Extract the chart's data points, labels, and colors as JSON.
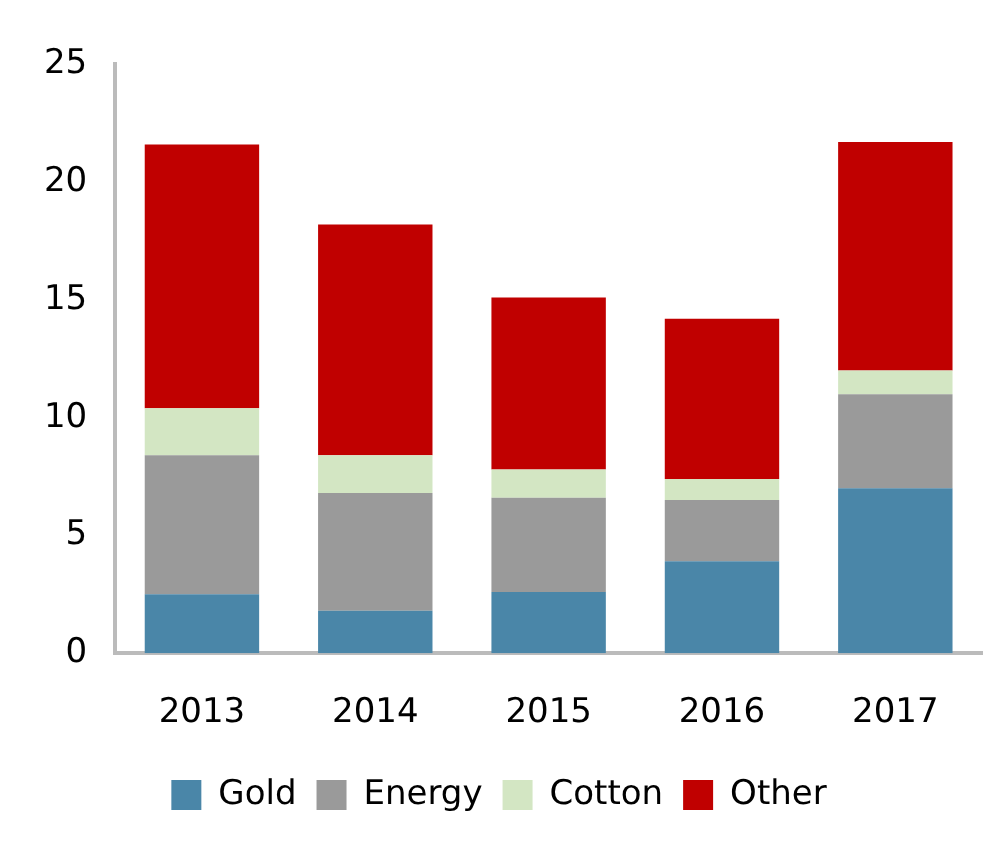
{
  "chart_data": {
    "type": "bar",
    "stacked": true,
    "categories": [
      "2013",
      "2014",
      "2015",
      "2016",
      "2017"
    ],
    "series": [
      {
        "name": "Gold",
        "color": "#4a86a8",
        "values": [
          2.5,
          1.8,
          2.6,
          3.9,
          7.0
        ]
      },
      {
        "name": "Energy",
        "color": "#9a9a9a",
        "values": [
          5.9,
          5.0,
          4.0,
          2.6,
          4.0
        ]
      },
      {
        "name": "Cotton",
        "color": "#d3e6c3",
        "values": [
          2.0,
          1.6,
          1.2,
          0.9,
          1.0
        ]
      },
      {
        "name": "Other",
        "color": "#c00000",
        "values": [
          11.2,
          9.8,
          7.3,
          6.8,
          9.7
        ]
      }
    ],
    "ylim": [
      0,
      25
    ],
    "yticks": [
      0,
      5,
      10,
      15,
      20,
      25
    ],
    "grid": false,
    "legend": "bottom"
  }
}
